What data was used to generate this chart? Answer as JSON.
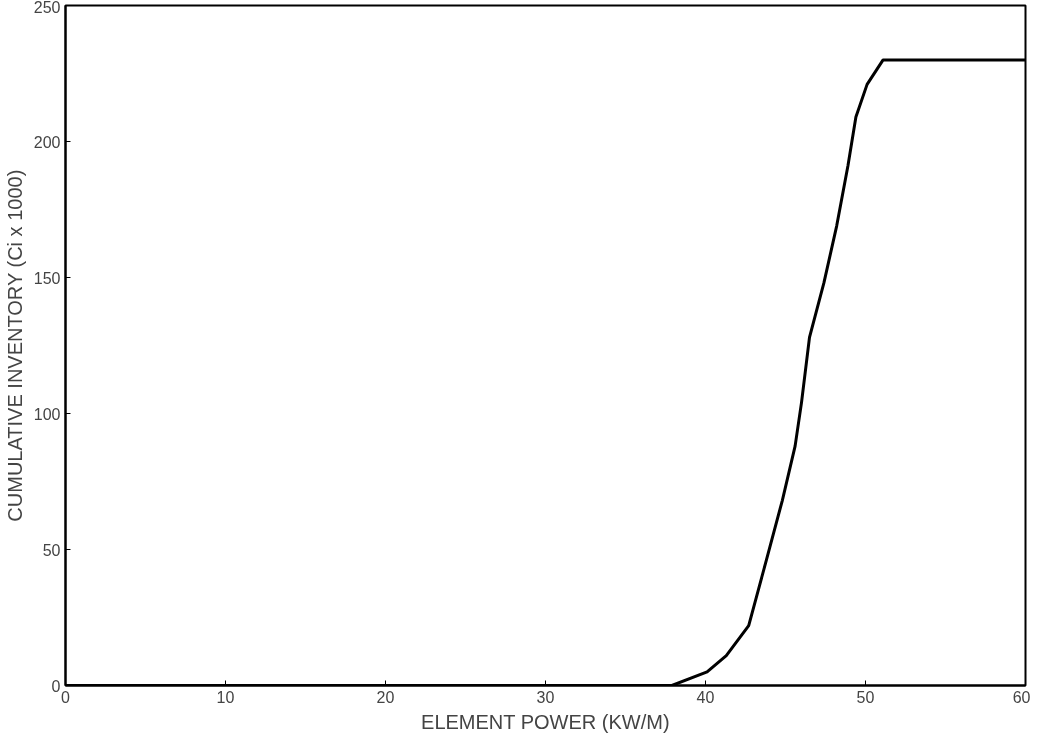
{
  "chart_data": {
    "type": "line",
    "xlabel": "ELEMENT POWER (KW/M)",
    "ylabel": "CUMULATIVE INVENTORY (Ci x 1000)",
    "x": [
      0,
      37.9,
      40.1,
      41.3,
      42.7,
      43.8,
      44.8,
      45.6,
      46.0,
      46.5,
      47.4,
      48.2,
      48.9,
      49.4,
      50.1,
      51.1,
      60
    ],
    "series": [
      {
        "color": "#000000",
        "values": [
          0,
          0,
          5,
          11,
          22,
          46,
          68,
          88,
          104,
          128,
          148,
          169,
          191,
          209,
          221,
          230,
          230
        ]
      }
    ],
    "xlim": [
      0,
      60
    ],
    "ylim": [
      0,
      250
    ],
    "xticks": [
      0,
      10,
      20,
      30,
      40,
      50,
      60
    ],
    "yticks": [
      0,
      50,
      100,
      150,
      200,
      250
    ],
    "grid": false,
    "marker": "none",
    "line_style": "solid"
  }
}
